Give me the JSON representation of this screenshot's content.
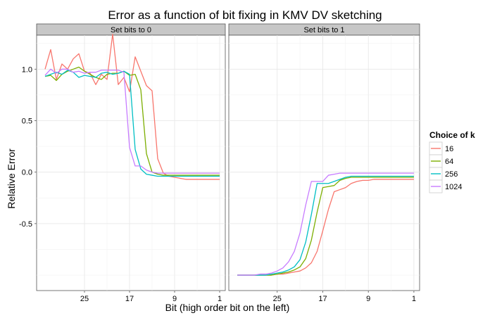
{
  "chart_data": {
    "type": "line",
    "title": "Error as a function of bit fixing in KMV DV sketching",
    "xlabel": "Bit (high order bit on the left)",
    "ylabel": "Relative Error",
    "x": [
      32,
      31,
      30,
      29,
      28,
      27,
      26,
      25,
      24,
      23,
      22,
      21,
      20,
      19,
      18,
      17,
      16,
      15,
      14,
      13,
      12,
      11,
      10,
      9,
      8,
      7,
      6,
      5,
      4,
      3,
      2,
      1
    ],
    "xlim": [
      33.5,
      0
    ],
    "x_ticks": [
      25,
      17,
      9,
      1
    ],
    "x_tick_labels": [
      "25",
      "17",
      "9",
      "1"
    ],
    "ylim": [
      -1.15,
      1.33
    ],
    "y_ticks": [
      1.0,
      0.5,
      0.0,
      -0.5
    ],
    "y_tick_labels": [
      "1.0",
      "0.5",
      "0.0",
      "-0.5"
    ],
    "grid": true,
    "legend": {
      "title": "Choice of k",
      "position": "right"
    },
    "colors": {
      "16": "#F8766D",
      "64": "#7CAE00",
      "256": "#00BFC4",
      "1024": "#C77CFF"
    },
    "panels": [
      {
        "title": "Set bits to 0",
        "series": [
          {
            "name": "16",
            "values": [
              1.0,
              1.19,
              0.9,
              1.05,
              1.0,
              1.1,
              1.15,
              0.98,
              0.96,
              0.85,
              0.95,
              0.9,
              1.34,
              0.85,
              0.92,
              0.78,
              1.12,
              0.98,
              0.84,
              0.79,
              0.13,
              -0.01,
              -0.04,
              -0.05,
              -0.06,
              -0.07,
              -0.07,
              -0.07,
              -0.07,
              -0.07,
              -0.07,
              -0.07
            ]
          },
          {
            "name": "64",
            "values": [
              0.93,
              0.94,
              0.89,
              0.95,
              0.98,
              1.0,
              1.02,
              0.98,
              0.95,
              0.92,
              0.9,
              0.95,
              0.96,
              0.96,
              0.98,
              0.94,
              0.95,
              0.8,
              0.18,
              0.0,
              -0.02,
              -0.03,
              -0.03,
              -0.03,
              -0.03,
              -0.03,
              -0.03,
              -0.03,
              -0.03,
              -0.03,
              -0.03,
              -0.03
            ]
          },
          {
            "name": "256",
            "values": [
              0.93,
              0.95,
              0.97,
              0.95,
              0.99,
              0.97,
              0.92,
              0.94,
              0.93,
              0.92,
              0.96,
              0.97,
              0.95,
              0.96,
              0.98,
              0.95,
              0.22,
              0.03,
              -0.02,
              -0.03,
              -0.04,
              -0.04,
              -0.04,
              -0.04,
              -0.04,
              -0.04,
              -0.04,
              -0.04,
              -0.04,
              -0.04,
              -0.04,
              -0.04
            ]
          },
          {
            "name": "1024",
            "values": [
              0.94,
              1.0,
              0.96,
              1.0,
              1.0,
              0.97,
              0.98,
              0.96,
              0.97,
              0.97,
              0.99,
              0.99,
              0.99,
              0.99,
              0.97,
              0.24,
              0.06,
              0.06,
              0.02,
              0.0,
              -0.01,
              -0.01,
              -0.01,
              -0.01,
              -0.01,
              -0.01,
              -0.01,
              -0.01,
              -0.01,
              -0.01,
              -0.01,
              -0.01
            ]
          }
        ]
      },
      {
        "title": "Set bits to 1",
        "series": [
          {
            "name": "16",
            "values": [
              -1.0,
              -1.0,
              -1.0,
              -1.0,
              -1.0,
              -1.0,
              -1.0,
              -0.99,
              -0.99,
              -0.98,
              -0.97,
              -0.96,
              -0.93,
              -0.88,
              -0.77,
              -0.57,
              -0.36,
              -0.19,
              -0.17,
              -0.15,
              -0.11,
              -0.09,
              -0.08,
              -0.08,
              -0.07,
              -0.07,
              -0.07,
              -0.07,
              -0.07,
              -0.07,
              -0.07,
              -0.07
            ]
          },
          {
            "name": "64",
            "values": [
              -1.0,
              -1.0,
              -1.0,
              -1.0,
              -1.0,
              -1.0,
              -1.0,
              -0.99,
              -0.98,
              -0.97,
              -0.95,
              -0.92,
              -0.84,
              -0.66,
              -0.39,
              -0.15,
              -0.14,
              -0.13,
              -0.08,
              -0.06,
              -0.05,
              -0.05,
              -0.05,
              -0.05,
              -0.05,
              -0.05,
              -0.05,
              -0.05,
              -0.05,
              -0.05,
              -0.05,
              -0.05
            ]
          },
          {
            "name": "256",
            "values": [
              -1.0,
              -1.0,
              -1.0,
              -1.0,
              -1.0,
              -1.0,
              -0.99,
              -0.98,
              -0.97,
              -0.95,
              -0.92,
              -0.85,
              -0.68,
              -0.41,
              -0.11,
              -0.11,
              -0.11,
              -0.09,
              -0.07,
              -0.05,
              -0.04,
              -0.04,
              -0.04,
              -0.04,
              -0.04,
              -0.04,
              -0.04,
              -0.04,
              -0.04,
              -0.04,
              -0.04,
              -0.04
            ]
          },
          {
            "name": "1024",
            "values": [
              -1.0,
              -1.0,
              -1.0,
              -1.0,
              -0.99,
              -0.99,
              -0.98,
              -0.96,
              -0.93,
              -0.87,
              -0.77,
              -0.59,
              -0.32,
              -0.09,
              -0.09,
              -0.09,
              -0.03,
              -0.02,
              -0.01,
              -0.01,
              -0.01,
              -0.01,
              -0.01,
              -0.01,
              -0.01,
              -0.01,
              -0.01,
              -0.01,
              -0.01,
              -0.01,
              -0.01,
              -0.01
            ]
          }
        ]
      }
    ]
  }
}
